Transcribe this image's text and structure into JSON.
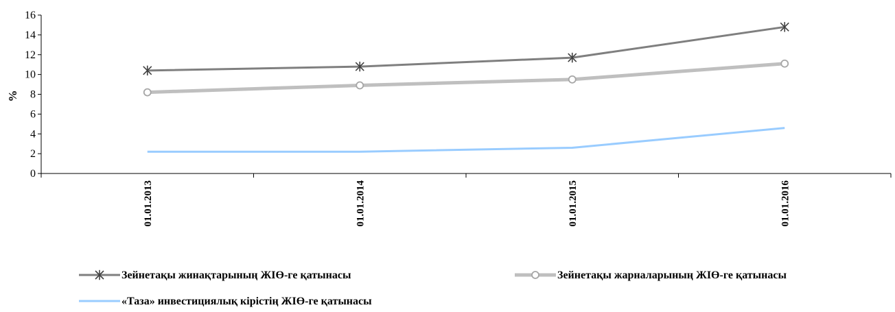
{
  "chart_data": {
    "type": "line",
    "title": "",
    "xlabel": "",
    "ylabel": "%",
    "ylim": [
      0,
      16
    ],
    "yticks": [
      0,
      2,
      4,
      6,
      8,
      10,
      12,
      14,
      16
    ],
    "categories": [
      "01.01.2013",
      "01.01.2014",
      "01.01.2015",
      "01.01.2016"
    ],
    "grid": false,
    "legend_position": "bottom",
    "series": [
      {
        "name": "Зейнетақы жинақтарының ЖІӨ-ге қатынасы",
        "values": [
          10.4,
          10.8,
          11.7,
          14.8
        ],
        "color": "#7f7f7f",
        "marker": "star"
      },
      {
        "name": "Зейнетақы жарналарының ЖІӨ-ге қатынасы",
        "values": [
          8.2,
          8.9,
          9.5,
          11.1
        ],
        "color": "#bfbfbf",
        "marker": "circle"
      },
      {
        "name": "«Таза» инвестициялық кірістің ЖІӨ-ге қатынасы",
        "values": [
          2.2,
          2.2,
          2.6,
          4.6
        ],
        "color": "#99ccff",
        "marker": "none"
      }
    ]
  }
}
